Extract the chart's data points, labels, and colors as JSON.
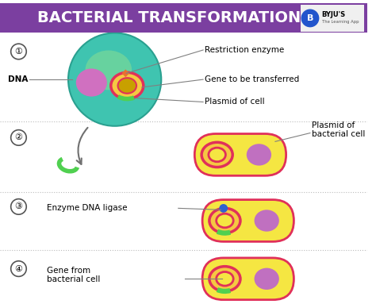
{
  "title": "BACTERIAL TRANSFORMATION",
  "title_bg": "#7B3FA0",
  "title_color": "#FFFFFF",
  "bg_color": "#FFFFFF",
  "annotations": {
    "restriction_enzyme": "Restriction enzyme",
    "gene_to_transfer": "Gene to be transferred",
    "plasmid_of_cell": "Plasmid of cell",
    "dna": "DNA",
    "plasmid_bacterial": "Plasmid of\nbacterial cell",
    "enzyme_dna_ligase": "Enzyme DNA ligase",
    "gene_from_bacterial": "Gene from\nbacterial cell"
  },
  "colors": {
    "cell_outer": "#3FC4B0",
    "cell_inner_glow": "#90E090",
    "nucleus": "#D070C0",
    "plasmid_ring": "#E0305A",
    "plasmid_fill": "#F5C842",
    "gene_green": "#50D050",
    "restriction_enzyme_color": "#E87030",
    "bacteria_body": "#F5E642",
    "bacteria_border": "#E0305A",
    "nucleus_bacteria": "#C070C0",
    "dna_ligase_blue": "#3060D0",
    "arrow_color": "#707070",
    "step_circle_face": "#FFFFFF",
    "step_circle_edge": "#555555",
    "dotted_line": "#BBBBBB"
  }
}
